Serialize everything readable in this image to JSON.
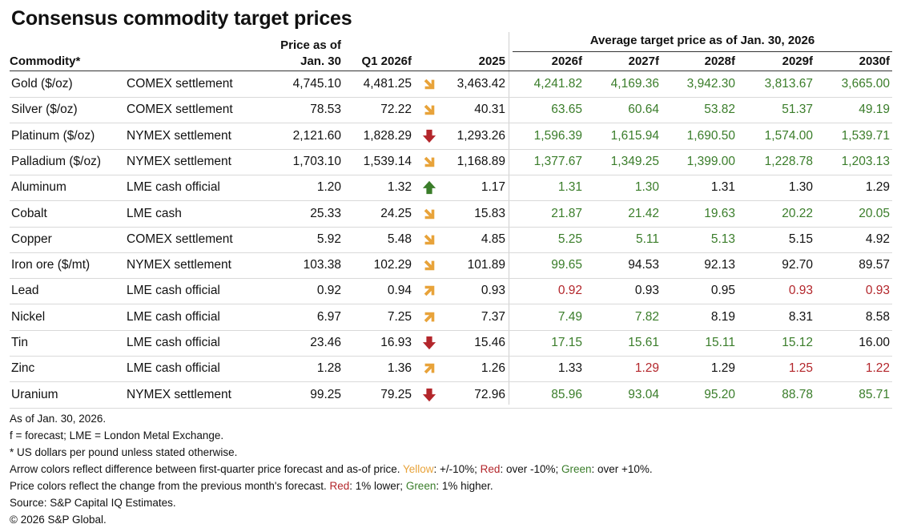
{
  "title": "Consensus commodity target prices",
  "group_header": "Average target price as of Jan. 30, 2026",
  "headers": {
    "commodity": "Commodity*",
    "price_line1": "Price as of",
    "price_line2": "Jan. 30",
    "q1": "Q1 2026f",
    "y2025": "2025",
    "y2026": "2026f",
    "y2027": "2027f",
    "y2028": "2028f",
    "y2029": "2029f",
    "y2030": "2030f"
  },
  "colors": {
    "yellow": "#e8a33a",
    "red": "#b3262b",
    "green": "#3a7d2a",
    "neutral": "#111111"
  },
  "chart_data": {
    "type": "table",
    "title": "Consensus commodity target prices",
    "columns": [
      "Commodity*",
      "",
      "Price as of Jan. 30",
      "Q1 2026f",
      "",
      "2025",
      "2026f",
      "2027f",
      "2028f",
      "2029f",
      "2030f"
    ],
    "rows": [
      {
        "commodity": "Gold ($/oz)",
        "settlement": "COMEX settlement",
        "price": "4,745.10",
        "q1": "4,481.25",
        "arrow": "yellow-down",
        "y2025": "3,463.42",
        "targets": [
          {
            "v": "4,241.82",
            "c": "green"
          },
          {
            "v": "4,169.36",
            "c": "green"
          },
          {
            "v": "3,942.30",
            "c": "green"
          },
          {
            "v": "3,813.67",
            "c": "green"
          },
          {
            "v": "3,665.00",
            "c": "green"
          }
        ]
      },
      {
        "commodity": "Silver ($/oz)",
        "settlement": "COMEX settlement",
        "price": "78.53",
        "q1": "72.22",
        "arrow": "yellow-down",
        "y2025": "40.31",
        "targets": [
          {
            "v": "63.65",
            "c": "green"
          },
          {
            "v": "60.64",
            "c": "green"
          },
          {
            "v": "53.82",
            "c": "green"
          },
          {
            "v": "51.37",
            "c": "green"
          },
          {
            "v": "49.19",
            "c": "green"
          }
        ]
      },
      {
        "commodity": "Platinum ($/oz)",
        "settlement": "NYMEX settlement",
        "price": "2,121.60",
        "q1": "1,828.29",
        "arrow": "red-down",
        "y2025": "1,293.26",
        "targets": [
          {
            "v": "1,596.39",
            "c": "green"
          },
          {
            "v": "1,615.94",
            "c": "green"
          },
          {
            "v": "1,690.50",
            "c": "green"
          },
          {
            "v": "1,574.00",
            "c": "green"
          },
          {
            "v": "1,539.71",
            "c": "green"
          }
        ]
      },
      {
        "commodity": "Palladium ($/oz)",
        "settlement": "NYMEX settlement",
        "price": "1,703.10",
        "q1": "1,539.14",
        "arrow": "yellow-down",
        "y2025": "1,168.89",
        "targets": [
          {
            "v": "1,377.67",
            "c": "green"
          },
          {
            "v": "1,349.25",
            "c": "green"
          },
          {
            "v": "1,399.00",
            "c": "green"
          },
          {
            "v": "1,228.78",
            "c": "green"
          },
          {
            "v": "1,203.13",
            "c": "green"
          }
        ]
      },
      {
        "commodity": "Aluminum",
        "settlement": "LME cash official",
        "price": "1.20",
        "q1": "1.32",
        "arrow": "green-up",
        "y2025": "1.17",
        "targets": [
          {
            "v": "1.31",
            "c": "green"
          },
          {
            "v": "1.30",
            "c": "green"
          },
          {
            "v": "1.31",
            "c": "neutral"
          },
          {
            "v": "1.30",
            "c": "neutral"
          },
          {
            "v": "1.29",
            "c": "neutral"
          }
        ]
      },
      {
        "commodity": "Cobalt",
        "settlement": "LME cash",
        "price": "25.33",
        "q1": "24.25",
        "arrow": "yellow-down",
        "y2025": "15.83",
        "targets": [
          {
            "v": "21.87",
            "c": "green"
          },
          {
            "v": "21.42",
            "c": "green"
          },
          {
            "v": "19.63",
            "c": "green"
          },
          {
            "v": "20.22",
            "c": "green"
          },
          {
            "v": "20.05",
            "c": "green"
          }
        ]
      },
      {
        "commodity": "Copper",
        "settlement": "COMEX settlement",
        "price": "5.92",
        "q1": "5.48",
        "arrow": "yellow-down",
        "y2025": "4.85",
        "targets": [
          {
            "v": "5.25",
            "c": "green"
          },
          {
            "v": "5.11",
            "c": "green"
          },
          {
            "v": "5.13",
            "c": "green"
          },
          {
            "v": "5.15",
            "c": "neutral"
          },
          {
            "v": "4.92",
            "c": "neutral"
          }
        ]
      },
      {
        "commodity": "Iron ore ($/mt)",
        "settlement": "NYMEX settlement",
        "price": "103.38",
        "q1": "102.29",
        "arrow": "yellow-down",
        "y2025": "101.89",
        "targets": [
          {
            "v": "99.65",
            "c": "green"
          },
          {
            "v": "94.53",
            "c": "neutral"
          },
          {
            "v": "92.13",
            "c": "neutral"
          },
          {
            "v": "92.70",
            "c": "neutral"
          },
          {
            "v": "89.57",
            "c": "neutral"
          }
        ]
      },
      {
        "commodity": "Lead",
        "settlement": "LME cash official",
        "price": "0.92",
        "q1": "0.94",
        "arrow": "yellow-up",
        "y2025": "0.93",
        "targets": [
          {
            "v": "0.92",
            "c": "red"
          },
          {
            "v": "0.93",
            "c": "neutral"
          },
          {
            "v": "0.95",
            "c": "neutral"
          },
          {
            "v": "0.93",
            "c": "red"
          },
          {
            "v": "0.93",
            "c": "red"
          }
        ]
      },
      {
        "commodity": "Nickel",
        "settlement": "LME cash official",
        "price": "6.97",
        "q1": "7.25",
        "arrow": "yellow-up",
        "y2025": "7.37",
        "targets": [
          {
            "v": "7.49",
            "c": "green"
          },
          {
            "v": "7.82",
            "c": "green"
          },
          {
            "v": "8.19",
            "c": "neutral"
          },
          {
            "v": "8.31",
            "c": "neutral"
          },
          {
            "v": "8.58",
            "c": "neutral"
          }
        ]
      },
      {
        "commodity": "Tin",
        "settlement": "LME cash official",
        "price": "23.46",
        "q1": "16.93",
        "arrow": "red-down",
        "y2025": "15.46",
        "targets": [
          {
            "v": "17.15",
            "c": "green"
          },
          {
            "v": "15.61",
            "c": "green"
          },
          {
            "v": "15.11",
            "c": "green"
          },
          {
            "v": "15.12",
            "c": "green"
          },
          {
            "v": "16.00",
            "c": "neutral"
          }
        ]
      },
      {
        "commodity": "Zinc",
        "settlement": "LME cash official",
        "price": "1.28",
        "q1": "1.36",
        "arrow": "yellow-up",
        "y2025": "1.26",
        "targets": [
          {
            "v": "1.33",
            "c": "neutral"
          },
          {
            "v": "1.29",
            "c": "red"
          },
          {
            "v": "1.29",
            "c": "neutral"
          },
          {
            "v": "1.25",
            "c": "red"
          },
          {
            "v": "1.22",
            "c": "red"
          }
        ]
      },
      {
        "commodity": "Uranium",
        "settlement": "NYMEX settlement",
        "price": "99.25",
        "q1": "79.25",
        "arrow": "red-down",
        "y2025": "72.96",
        "targets": [
          {
            "v": "85.96",
            "c": "green"
          },
          {
            "v": "93.04",
            "c": "green"
          },
          {
            "v": "95.20",
            "c": "green"
          },
          {
            "v": "88.78",
            "c": "green"
          },
          {
            "v": "85.71",
            "c": "green"
          }
        ]
      }
    ]
  },
  "notes": {
    "as_of": "As of Jan. 30, 2026.",
    "forecast": "f = forecast; LME = London Metal Exchange.",
    "units": "* US dollars per pound unless stated otherwise.",
    "arrow_prefix": "Arrow colors reflect difference between first-quarter price forecast and as-of price. ",
    "arrow_yellow": "Yellow",
    "arrow_yellow_desc": ": +/-10%; ",
    "arrow_red": "Red",
    "arrow_red_desc": ": over -10%; ",
    "arrow_green": "Green",
    "arrow_green_desc": ": over +10%.",
    "price_prefix": "Price colors reflect the change from the previous month's forecast. ",
    "price_red": "Red",
    "price_red_desc": ": 1% lower; ",
    "price_green": "Green",
    "price_green_desc": ": 1% higher.",
    "source": "Source: S&P Capital IQ Estimates.",
    "copyright": "© 2026 S&P Global."
  }
}
